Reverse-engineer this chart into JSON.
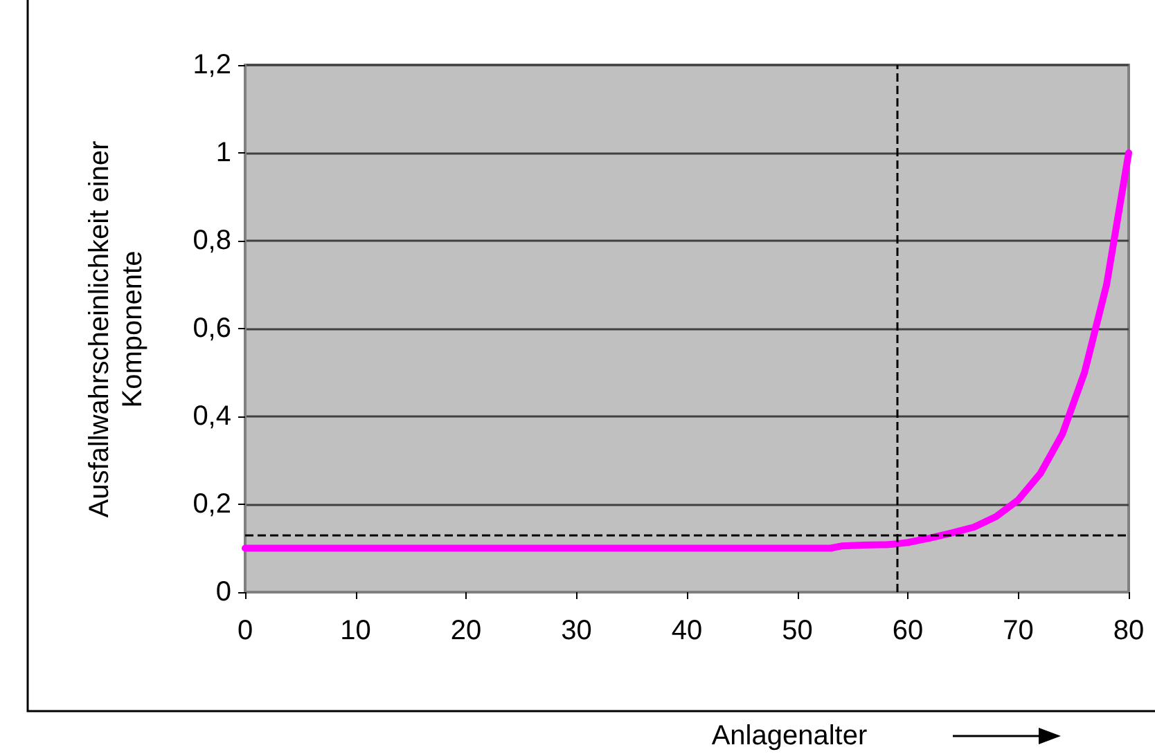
{
  "chart_data": {
    "type": "line",
    "xlabel": "Anlagenalter",
    "ylabel": "Ausfallwahrscheinlichkeit einer\nKomponente",
    "series": [
      {
        "color": "#ff00ff",
        "x": [
          0,
          10,
          20,
          30,
          40,
          50,
          53,
          54,
          56,
          58,
          59,
          60,
          62,
          64,
          66,
          68,
          70,
          72,
          74,
          76,
          78,
          80
        ],
        "values": [
          0.1,
          0.1,
          0.1,
          0.1,
          0.1,
          0.1,
          0.1,
          0.105,
          0.107,
          0.108,
          0.11,
          0.113,
          0.123,
          0.135,
          0.148,
          0.172,
          0.21,
          0.27,
          0.36,
          0.5,
          0.7,
          1.0
        ]
      }
    ],
    "xlim": [
      0,
      80
    ],
    "xticks": [
      0,
      10,
      20,
      30,
      40,
      50,
      60,
      70,
      80
    ],
    "ylim": [
      0,
      1.2
    ],
    "yticks": [
      {
        "value": 0,
        "label": "0"
      },
      {
        "value": 0.2,
        "label": "0,2"
      },
      {
        "value": 0.4,
        "label": "0,4"
      },
      {
        "value": 0.6,
        "label": "0,6"
      },
      {
        "value": 0.8,
        "label": "0,8"
      },
      {
        "value": 1,
        "label": "1"
      },
      {
        "value": 1.2,
        "label": "1,2"
      }
    ],
    "ref_lines": [
      {
        "axis": "y",
        "value": 0.125,
        "color": "#000000",
        "line_style": "dashed"
      },
      {
        "axis": "x",
        "value": 59,
        "color": "#000000",
        "line_style": "dashed"
      }
    ],
    "grid": "y",
    "marker": "none",
    "line_style": "solid"
  }
}
